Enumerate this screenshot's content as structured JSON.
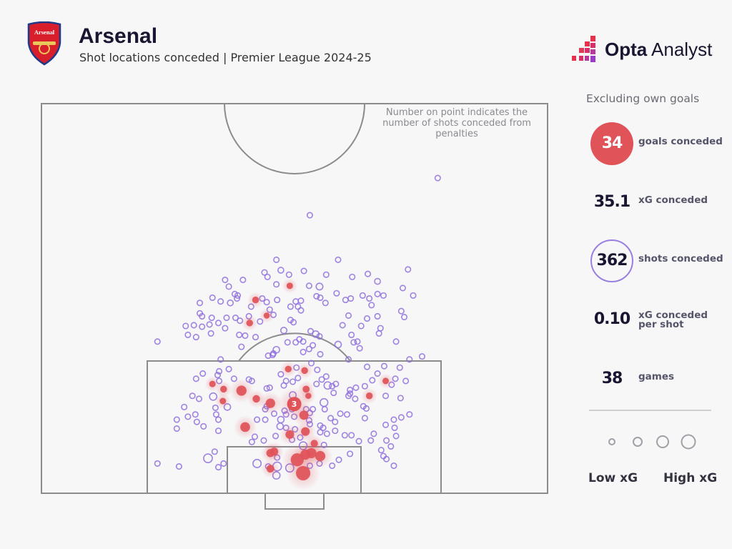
{
  "header": {
    "team": "Arsenal",
    "crest_text": "Arsenal",
    "subtitle": "Shot locations conceded | Premier League 2024-25",
    "brand_bold": "Opta",
    "brand_light": "Analyst"
  },
  "sidebar": {
    "heading": "Excluding own goals",
    "stats": [
      {
        "value": "34",
        "label": "goals conceded"
      },
      {
        "value": "35.1",
        "label": "xG conceded"
      },
      {
        "value": "362",
        "label": "shots conceded"
      },
      {
        "value": "0.10",
        "label": "xG conceded per shot"
      },
      {
        "value": "38",
        "label": "games"
      }
    ],
    "legend_low": "Low xG",
    "legend_high": "High xG"
  },
  "colors": {
    "goal": "#e05358",
    "shot": "#8f6fdd",
    "pitch_line": "#8c8c8c",
    "background": "#f7f7f8"
  },
  "chart_data": {
    "type": "scatter",
    "title": "Shot locations conceded | Premier League 2024-25",
    "annotation": "Number on point indicates the number of shots conceded from penalties",
    "coordinate_system": "metres: x across from left touchline (0-68), y from goal line (0-52.5)",
    "marker_size": "xG",
    "goals": [
      [
        33.4,
        27.9,
        0.05
      ],
      [
        28.8,
        26.0,
        0.06
      ],
      [
        30.3,
        23.9,
        0.04
      ],
      [
        28.0,
        22.9,
        0.06
      ],
      [
        33.2,
        16.7,
        0.06
      ],
      [
        35.4,
        16.5,
        0.06
      ],
      [
        23.0,
        14.7,
        0.05
      ],
      [
        24.5,
        14.0,
        0.06
      ],
      [
        26.9,
        13.8,
        0.25
      ],
      [
        28.9,
        12.7,
        0.09
      ],
      [
        24.4,
        12.4,
        0.05
      ],
      [
        30.8,
        12.1,
        0.2
      ],
      [
        35.6,
        14.0,
        0.07
      ],
      [
        35.9,
        13.1,
        0.04
      ],
      [
        46.3,
        15.1,
        0.05
      ],
      [
        44.1,
        13.1,
        0.06
      ],
      [
        35.3,
        10.5,
        0.18
      ],
      [
        27.4,
        8.9,
        0.22
      ],
      [
        33.4,
        7.9,
        0.15
      ],
      [
        35.5,
        8.3,
        0.15
      ],
      [
        36.7,
        6.7,
        0.08
      ],
      [
        30.8,
        5.4,
        0.12
      ],
      [
        31.3,
        5.6,
        0.12
      ],
      [
        34.4,
        4.5,
        0.5
      ],
      [
        35.5,
        5.2,
        0.25
      ],
      [
        36.3,
        5.4,
        0.25
      ],
      [
        37.5,
        5.0,
        0.25
      ],
      [
        30.8,
        3.3,
        0.1
      ],
      [
        35.2,
        2.7,
        0.65
      ]
    ],
    "penalty": {
      "x": 34.0,
      "y": 12.0,
      "xg": 0.79,
      "label": "3"
    },
    "shots": [
      [
        53.3,
        42.4
      ],
      [
        36.1,
        37.4
      ],
      [
        15.6,
        20.4
      ],
      [
        31.6,
        31.4
      ],
      [
        39.9,
        31.4
      ],
      [
        49.3,
        30.1
      ],
      [
        32.2,
        30.0,
        0.03
      ],
      [
        30.0,
        29.7
      ],
      [
        30.4,
        29.1
      ],
      [
        35.3,
        29.9
      ],
      [
        33.3,
        29.4
      ],
      [
        38.3,
        29.4
      ],
      [
        24.7,
        28.7
      ],
      [
        27.1,
        28.7
      ],
      [
        41.8,
        29.1
      ],
      [
        43.9,
        29.5
      ],
      [
        45.2,
        28.5,
        0.03
      ],
      [
        31.6,
        28.1
      ],
      [
        36.0,
        27.9
      ],
      [
        37.4,
        27.8,
        0.06
      ],
      [
        25.2,
        27.8
      ],
      [
        48.6,
        27.6
      ],
      [
        26.0,
        26.8
      ],
      [
        26.4,
        26.6
      ],
      [
        26.3,
        26.2
      ],
      [
        23.0,
        26.3
      ],
      [
        24.1,
        25.8
      ],
      [
        25.4,
        25.6,
        0.03
      ],
      [
        29.7,
        26.2
      ],
      [
        30.3,
        25.7
      ],
      [
        30.7,
        24.7
      ],
      [
        31.7,
        26.0
      ],
      [
        34.2,
        25.8
      ],
      [
        34.9,
        25.9
      ],
      [
        34.5,
        25.1
      ],
      [
        34.9,
        24.6
      ],
      [
        33.5,
        25.1
      ],
      [
        37.0,
        26.5
      ],
      [
        37.5,
        26.3
      ],
      [
        38.2,
        25.6
      ],
      [
        39.7,
        26.9
      ],
      [
        40.9,
        26.0
      ],
      [
        41.6,
        26.2
      ],
      [
        43.2,
        26.6
      ],
      [
        44.1,
        26.2
      ],
      [
        45.2,
        26.8
      ],
      [
        46.0,
        26.6
      ],
      [
        50.0,
        26.6
      ],
      [
        44.4,
        25.3
      ],
      [
        21.3,
        25.6
      ],
      [
        28.2,
        25.1
      ],
      [
        48.4,
        24.5
      ],
      [
        48.8,
        23.7
      ],
      [
        45.2,
        23.8
      ],
      [
        41.3,
        23.9
      ],
      [
        43.8,
        23.5
      ],
      [
        21.3,
        24.2
      ],
      [
        21.6,
        23.8
      ],
      [
        22.9,
        23.6
      ],
      [
        24.9,
        23.6
      ],
      [
        26.1,
        23.6
      ],
      [
        26.7,
        23.2
      ],
      [
        27.9,
        23.8
      ],
      [
        29.4,
        23.1
      ],
      [
        31.2,
        24.0
      ],
      [
        33.5,
        23.3
      ],
      [
        33.9,
        23.0
      ],
      [
        19.4,
        22.5
      ],
      [
        20.5,
        22.6
      ],
      [
        21.6,
        22.4
      ],
      [
        22.6,
        22.7
      ],
      [
        23.8,
        22.9
      ],
      [
        24.7,
        22.2
      ],
      [
        22.8,
        21.5
      ],
      [
        19.7,
        21.3
      ],
      [
        20.8,
        21.0
      ],
      [
        26.6,
        21.3
      ],
      [
        27.4,
        21.2
      ],
      [
        28.8,
        21.0
      ],
      [
        32.6,
        21.9,
        0.04
      ],
      [
        36.2,
        21.8
      ],
      [
        36.9,
        21.4,
        0.05
      ],
      [
        37.4,
        21.1
      ],
      [
        40.5,
        22.6
      ],
      [
        43.0,
        22.5
      ],
      [
        45.6,
        22.2
      ],
      [
        45.4,
        21.5
      ],
      [
        41.7,
        21.3
      ],
      [
        42.0,
        20.3
      ],
      [
        42.5,
        20.4
      ],
      [
        42.8,
        19.5
      ],
      [
        47.7,
        20.4
      ],
      [
        26.9,
        19.7
      ],
      [
        33.1,
        20.3
      ],
      [
        34.2,
        20.3
      ],
      [
        34.7,
        20.7
      ],
      [
        35.2,
        20.4
      ],
      [
        31.6,
        19.3,
        0.05
      ],
      [
        31.1,
        18.6
      ],
      [
        30.5,
        18.5
      ],
      [
        35.2,
        19.0
      ],
      [
        36.0,
        19.4
      ],
      [
        36.5,
        19.9
      ],
      [
        37.5,
        18.7
      ],
      [
        39.9,
        20.0,
        0.05
      ],
      [
        24.1,
        18.0
      ],
      [
        49.5,
        18.0
      ],
      [
        51.2,
        18.4
      ],
      [
        31.2,
        18.8
      ],
      [
        41.3,
        18.0
      ],
      [
        34.3,
        16.9
      ],
      [
        36.3,
        17.5
      ],
      [
        37.1,
        16.6
      ],
      [
        25.2,
        16.7
      ],
      [
        23.9,
        16.4
      ],
      [
        21.7,
        16.1
      ],
      [
        20.8,
        15.4
      ],
      [
        23.7,
        15.9
      ],
      [
        23.9,
        15.1
      ],
      [
        25.9,
        15.4
      ],
      [
        27.9,
        15.3
      ],
      [
        28.3,
        15.1
      ],
      [
        32.2,
        16.0
      ],
      [
        32.9,
        15.1
      ],
      [
        33.8,
        15.0
      ],
      [
        34.5,
        15.5
      ],
      [
        32.6,
        14.5
      ],
      [
        30.3,
        14.1
      ],
      [
        30.7,
        14.2
      ],
      [
        37.7,
        15.3
      ],
      [
        38.3,
        15.7
      ],
      [
        37.0,
        14.7
      ],
      [
        38.5,
        14.5,
        0.08
      ],
      [
        39.1,
        14.4
      ],
      [
        39.6,
        14.7
      ],
      [
        39.3,
        13.5
      ],
      [
        41.5,
        13.9
      ],
      [
        42.3,
        14.2
      ],
      [
        41.5,
        13.4
      ],
      [
        43.5,
        14.4
      ],
      [
        43.8,
        17.0
      ],
      [
        46.1,
        17.1
      ],
      [
        48.2,
        16.9
      ],
      [
        45.2,
        16.1
      ],
      [
        44.5,
        15.2
      ],
      [
        47.1,
        14.6
      ],
      [
        47.6,
        15.4
      ],
      [
        49.0,
        15.1
      ],
      [
        48.3,
        12.8
      ],
      [
        46.3,
        13.1
      ],
      [
        43.3,
        11.7
      ],
      [
        43.7,
        11.4
      ],
      [
        42.2,
        12.7
      ],
      [
        41.3,
        13.1
      ],
      [
        20.3,
        13.1
      ],
      [
        21.2,
        12.7
      ],
      [
        23.1,
        13.0,
        0.08
      ],
      [
        23.4,
        11.5
      ],
      [
        25.0,
        11.6,
        0.05
      ],
      [
        19.2,
        11.6
      ],
      [
        18.2,
        9.9
      ],
      [
        19.7,
        10.3
      ],
      [
        20.7,
        10.6
      ],
      [
        20.9,
        9.6
      ],
      [
        21.8,
        9.0
      ],
      [
        23.5,
        10.6
      ],
      [
        23.8,
        9.9
      ],
      [
        18.2,
        8.7
      ],
      [
        23.8,
        8.4
      ],
      [
        29.0,
        9.9
      ],
      [
        30.1,
        9.9
      ],
      [
        30.1,
        11.3
      ],
      [
        30.3,
        11.7
      ],
      [
        31.3,
        10.7
      ],
      [
        32.2,
        9.9,
        0.05
      ],
      [
        32.9,
        10.6
      ],
      [
        32.7,
        11.1
      ],
      [
        33.8,
        13.2,
        0.06
      ],
      [
        33.7,
        11.3
      ],
      [
        34.0,
        10.3
      ],
      [
        35.6,
        11.3
      ],
      [
        36.1,
        10.8
      ],
      [
        36.5,
        11.3
      ],
      [
        38.0,
        12.2,
        0.1
      ],
      [
        38.1,
        11.3
      ],
      [
        36.0,
        9.8
      ],
      [
        36.1,
        9.3
      ],
      [
        37.5,
        9.1
      ],
      [
        37.9,
        8.8
      ],
      [
        38.9,
        10.1
      ],
      [
        39.5,
        9.6
      ],
      [
        40.2,
        10.7
      ],
      [
        41.1,
        10.6
      ],
      [
        43.5,
        10.1
      ],
      [
        47.4,
        9.9
      ],
      [
        48.4,
        10.2
      ],
      [
        49.5,
        10.6
      ],
      [
        46.3,
        9.2
      ],
      [
        47.5,
        8.8
      ],
      [
        32.1,
        9.0,
        0.05
      ],
      [
        32.9,
        8.8
      ],
      [
        34.1,
        8.6
      ],
      [
        34.8,
        7.5
      ],
      [
        37.5,
        8.2
      ],
      [
        38.4,
        8.0
      ],
      [
        39.5,
        8.4
      ],
      [
        40.8,
        7.8
      ],
      [
        41.7,
        7.8
      ],
      [
        42.7,
        7.0
      ],
      [
        44.7,
        8.0
      ],
      [
        44.3,
        7.1
      ],
      [
        46.4,
        7.1
      ],
      [
        47.7,
        7.7
      ],
      [
        47.0,
        6.3
      ],
      [
        45.7,
        5.8
      ],
      [
        46.0,
        5.0
      ],
      [
        46.4,
        4.6
      ],
      [
        47.4,
        3.7
      ],
      [
        41.5,
        5.3
      ],
      [
        40.0,
        4.5
      ],
      [
        39.1,
        3.7
      ],
      [
        29.9,
        7.1
      ],
      [
        31.5,
        7.7
      ],
      [
        28.7,
        7.6
      ],
      [
        28.3,
        6.9
      ],
      [
        33.7,
        7.2
      ],
      [
        35.2,
        6.4,
        0.1
      ],
      [
        38.0,
        6.5
      ],
      [
        23.3,
        5.6
      ],
      [
        22.4,
        4.7,
        0.15
      ],
      [
        24.5,
        4.0
      ],
      [
        23.8,
        3.5
      ],
      [
        15.6,
        4.0
      ],
      [
        18.5,
        3.6
      ],
      [
        29.0,
        4.0,
        0.12
      ],
      [
        30.5,
        3.6
      ],
      [
        31.7,
        3.6,
        0.15
      ],
      [
        31.7,
        4.8
      ],
      [
        33.4,
        3.4,
        0.12
      ],
      [
        36.1,
        3.7
      ],
      [
        37.4,
        4.0
      ],
      [
        31.6,
        2.4,
        0.08
      ]
    ],
    "legend_xg_levels": [
      0.02,
      0.08,
      0.2,
      0.4
    ]
  }
}
